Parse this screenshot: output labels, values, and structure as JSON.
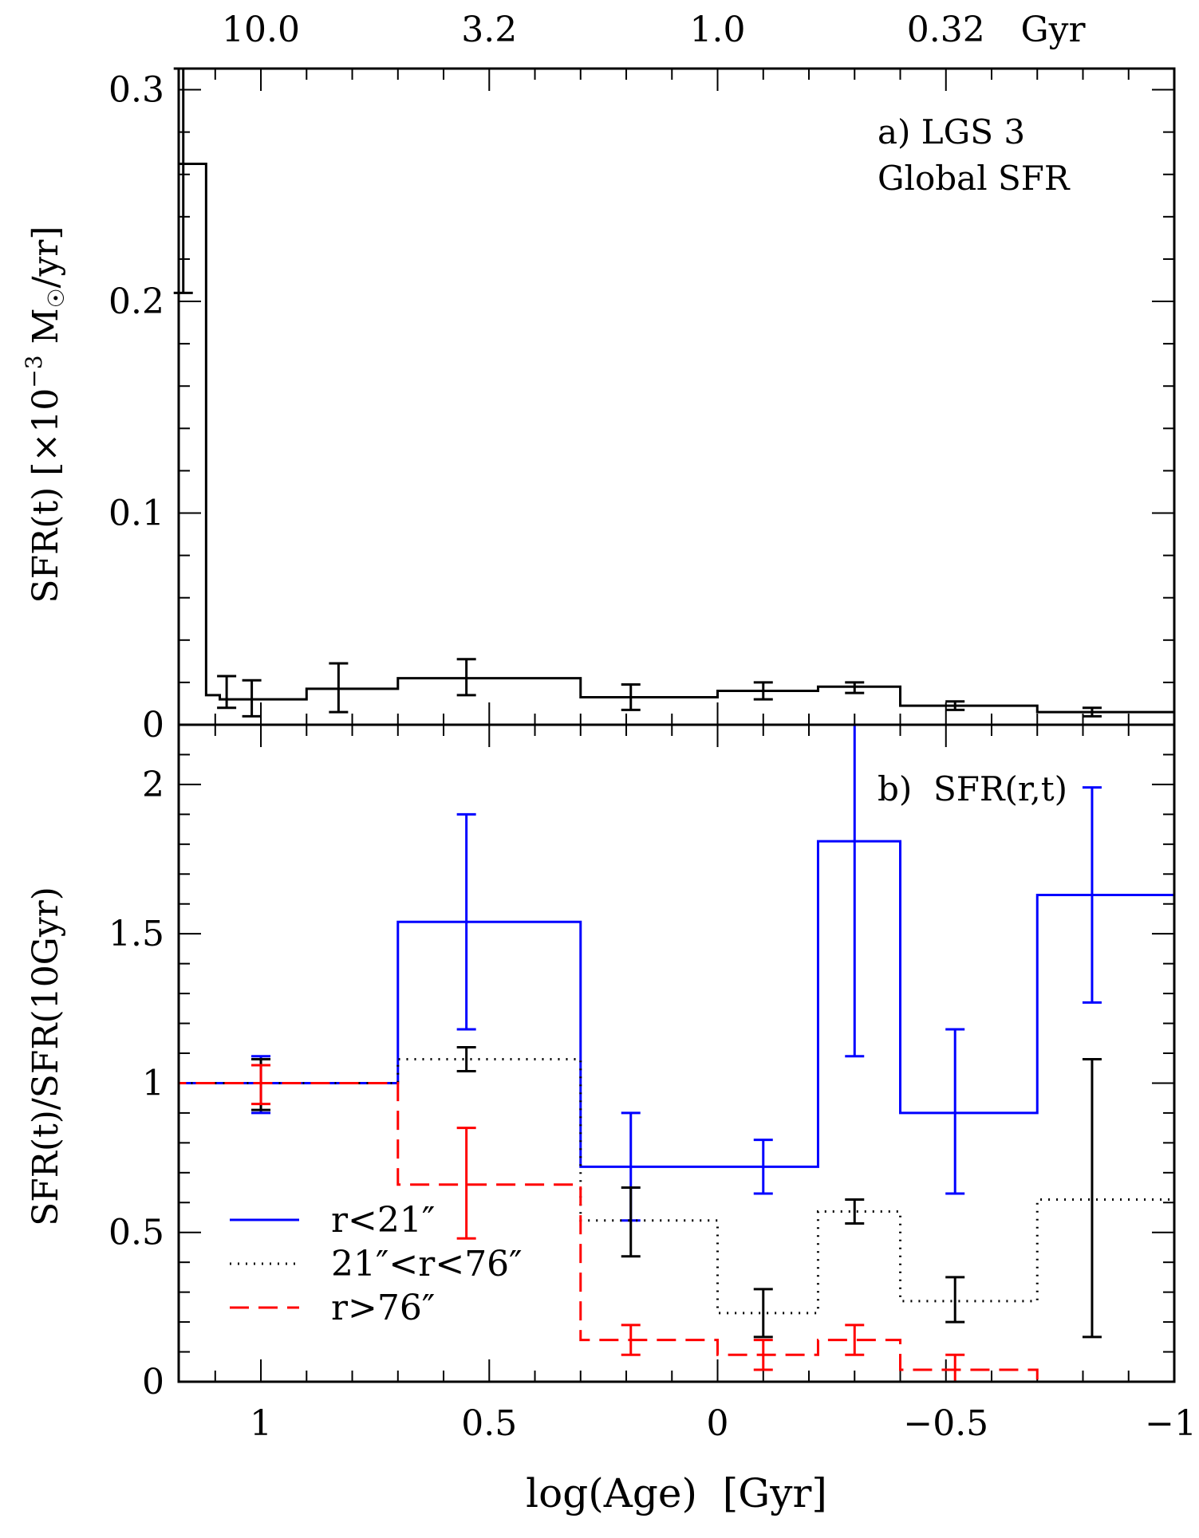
{
  "chart_data": [
    {
      "type": "line",
      "step": true,
      "panel": "a",
      "title": "a) LGS 3",
      "subtitle": "Global SFR",
      "ylabel": "SFR(t)  [×10⁻³  M☉/yr]",
      "ylabel_parts": {
        "main": "SFR(t)  [×10",
        "exp": "−3",
        "unit": " M",
        "sun": "☉",
        "tail": "/yr]"
      },
      "xlim": [
        1.18,
        -1.0
      ],
      "ylim": [
        0,
        0.31
      ],
      "yticks": [
        0,
        0.1,
        0.2,
        0.3
      ],
      "ytick_labels": [
        "0",
        "0.1",
        "0.2",
        "0.3"
      ],
      "top_axis": {
        "ticks": [
          1.0,
          0.5,
          0.0,
          -0.5
        ],
        "labels": [
          "10.0",
          "3.2",
          "1.0",
          "0.32"
        ],
        "unit": "Gyr"
      },
      "series": [
        {
          "name": "Global SFR",
          "color": "#000000",
          "style": "solid",
          "bins": [
            [
              1.18,
              1.12,
              0.265
            ],
            [
              1.12,
              1.09,
              0.014
            ],
            [
              1.09,
              0.9,
              0.012
            ],
            [
              0.9,
              0.7,
              0.017
            ],
            [
              0.7,
              0.3,
              0.022
            ],
            [
              0.3,
              -0.0,
              0.013
            ],
            [
              -0.0,
              -0.22,
              0.016
            ],
            [
              -0.22,
              -0.4,
              0.018
            ],
            [
              -0.4,
              -0.7,
              0.009
            ],
            [
              -0.7,
              -1.0,
              0.006
            ]
          ],
          "errorbars": [
            [
              1.17,
              0.265,
              0.204,
              0.31
            ],
            [
              1.075,
              0.015,
              0.008,
              0.023
            ],
            [
              1.02,
              0.012,
              0.004,
              0.021
            ],
            [
              0.83,
              0.017,
              0.006,
              0.029
            ],
            [
              0.55,
              0.022,
              0.014,
              0.031
            ],
            [
              0.19,
              0.013,
              0.007,
              0.019
            ],
            [
              -0.1,
              0.016,
              0.012,
              0.02
            ],
            [
              -0.3,
              0.018,
              0.015,
              0.02
            ],
            [
              -0.52,
              0.009,
              0.007,
              0.011
            ],
            [
              -0.82,
              0.006,
              0.004,
              0.008
            ]
          ]
        }
      ]
    },
    {
      "type": "line",
      "step": true,
      "panel": "b",
      "title": "b)  SFR(r,t)",
      "xlabel": "log(Age)  [Gyr]",
      "ylabel": "SFR(t)/SFR(10Gyr)",
      "xlim": [
        1.18,
        -1.0
      ],
      "ylim": [
        0,
        2.2
      ],
      "xticks": [
        1,
        0.5,
        0,
        -0.5,
        -1
      ],
      "xtick_labels": [
        "1",
        "0.5",
        "0",
        "−0.5",
        "−1"
      ],
      "yticks": [
        0,
        0.5,
        1,
        1.5,
        2
      ],
      "ytick_labels": [
        "0",
        "0.5",
        "1",
        "1.5",
        "2"
      ],
      "legend": {
        "placement": "lower-left"
      },
      "series": [
        {
          "name": "r<21″",
          "color": "#0000ff",
          "style": "solid",
          "bins": [
            [
              1.18,
              0.7,
              1.0
            ],
            [
              0.7,
              0.3,
              1.54
            ],
            [
              0.3,
              -0.22,
              0.72
            ],
            [
              -0.22,
              -0.4,
              1.81
            ],
            [
              -0.4,
              -0.7,
              0.9
            ],
            [
              -0.7,
              -1.0,
              1.63
            ]
          ],
          "errorbars": [
            [
              1.0,
              1.0,
              0.9,
              1.09
            ],
            [
              0.55,
              1.54,
              1.18,
              1.9
            ],
            [
              0.19,
              0.72,
              0.54,
              0.9
            ],
            [
              -0.1,
              0.72,
              0.63,
              0.81
            ],
            [
              -0.3,
              1.81,
              1.09,
              2.2
            ],
            [
              -0.52,
              0.9,
              0.63,
              1.18
            ],
            [
              -0.82,
              1.63,
              1.27,
              1.99
            ]
          ]
        },
        {
          "name": "21″<r<76″",
          "color": "#000000",
          "style": "dotted",
          "bins": [
            [
              1.18,
              0.7,
              1.0
            ],
            [
              0.7,
              0.3,
              1.08
            ],
            [
              0.3,
              0.0,
              0.54
            ],
            [
              0.0,
              -0.22,
              0.23
            ],
            [
              -0.22,
              -0.4,
              0.57
            ],
            [
              -0.4,
              -0.7,
              0.27
            ],
            [
              -0.7,
              -1.0,
              0.61
            ]
          ],
          "errorbars": [
            [
              1.0,
              1.0,
              0.91,
              1.08
            ],
            [
              0.55,
              1.08,
              1.04,
              1.12
            ],
            [
              0.19,
              0.54,
              0.42,
              0.65
            ],
            [
              -0.1,
              0.23,
              0.15,
              0.31
            ],
            [
              -0.3,
              0.57,
              0.53,
              0.61
            ],
            [
              -0.52,
              0.27,
              0.2,
              0.35
            ],
            [
              -0.82,
              0.61,
              0.15,
              1.08
            ]
          ]
        },
        {
          "name": "r>76″",
          "color": "#ff0000",
          "style": "dashed",
          "bins": [
            [
              1.18,
              0.7,
              1.0
            ],
            [
              0.7,
              0.3,
              0.66
            ],
            [
              0.3,
              0.0,
              0.14
            ],
            [
              0.0,
              -0.22,
              0.09
            ],
            [
              -0.22,
              -0.4,
              0.14
            ],
            [
              -0.4,
              -0.7,
              0.04
            ],
            [
              -0.7,
              -1.0,
              0.0
            ]
          ],
          "errorbars": [
            [
              1.0,
              1.0,
              0.93,
              1.06
            ],
            [
              0.55,
              0.66,
              0.48,
              0.85
            ],
            [
              0.19,
              0.14,
              0.09,
              0.19
            ],
            [
              -0.1,
              0.09,
              0.04,
              0.14
            ],
            [
              -0.3,
              0.14,
              0.09,
              0.19
            ],
            [
              -0.52,
              0.04,
              0.0,
              0.09
            ]
          ]
        }
      ]
    }
  ]
}
